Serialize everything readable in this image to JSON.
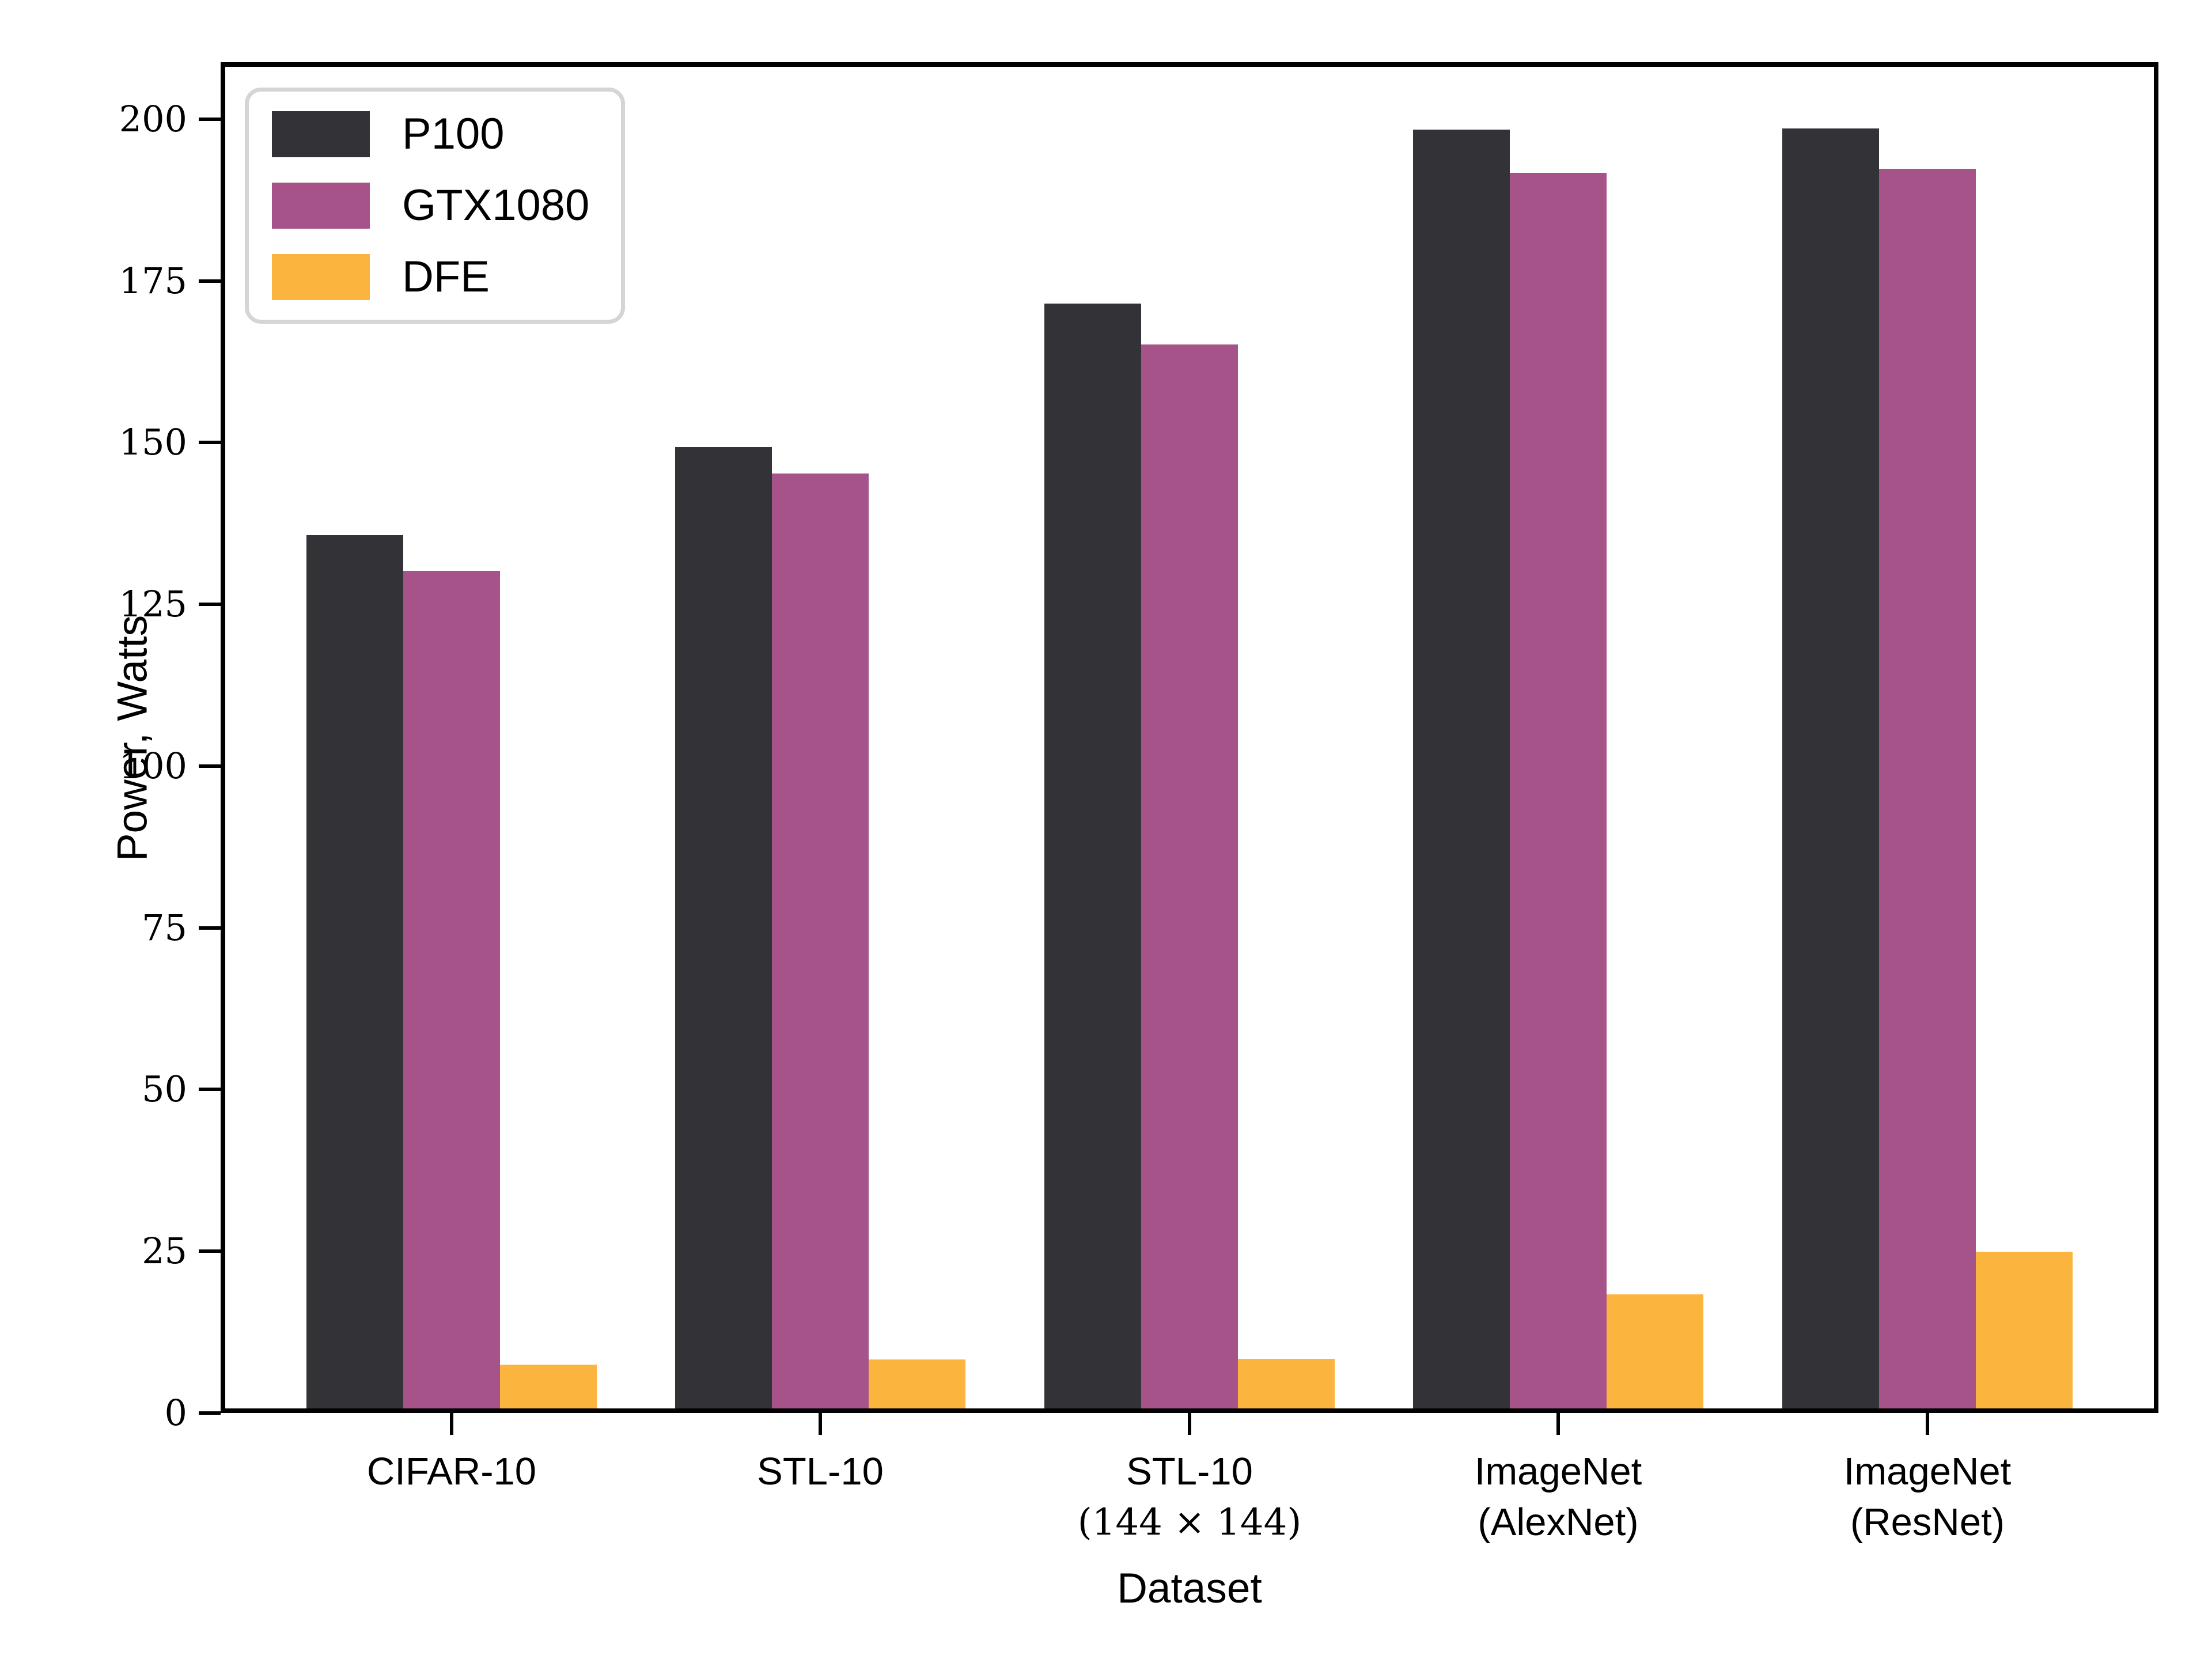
{
  "chart_data": {
    "type": "bar",
    "title": "",
    "xlabel": "Dataset",
    "ylabel": "Power, Watts",
    "ylim": [
      0,
      208.8
    ],
    "yticks": [
      0,
      25,
      50,
      75,
      100,
      125,
      150,
      175,
      200
    ],
    "grid": false,
    "legend_position": "upper-left",
    "categories": [
      {
        "label": "CIFAR-10",
        "sub": "",
        "sub_serif": false
      },
      {
        "label": "STL-10",
        "sub": "",
        "sub_serif": false
      },
      {
        "label": "STL-10",
        "sub": "(144 × 144)",
        "sub_serif": true
      },
      {
        "label": "ImageNet",
        "sub": "(AlexNet)",
        "sub_serif": false
      },
      {
        "label": "ImageNet",
        "sub": "(ResNet)",
        "sub_serif": false
      }
    ],
    "series": [
      {
        "name": "P100",
        "color": "#333337",
        "values": [
          135.7,
          149.3,
          171.5,
          198.4,
          198.6
        ]
      },
      {
        "name": "GTX1080",
        "color": "#A6538A",
        "values": [
          130.2,
          145.2,
          165.2,
          191.7,
          192.3
        ]
      },
      {
        "name": "DFE",
        "color": "#FBB43D",
        "values": [
          7.5,
          8.3,
          8.4,
          18.3,
          24.9
        ]
      }
    ]
  },
  "legend": {
    "items": [
      {
        "label": "P100"
      },
      {
        "label": "GTX1080"
      },
      {
        "label": "DFE"
      }
    ]
  },
  "axes": {
    "ylabel": "Power, Watts",
    "xlabel": "Dataset"
  }
}
